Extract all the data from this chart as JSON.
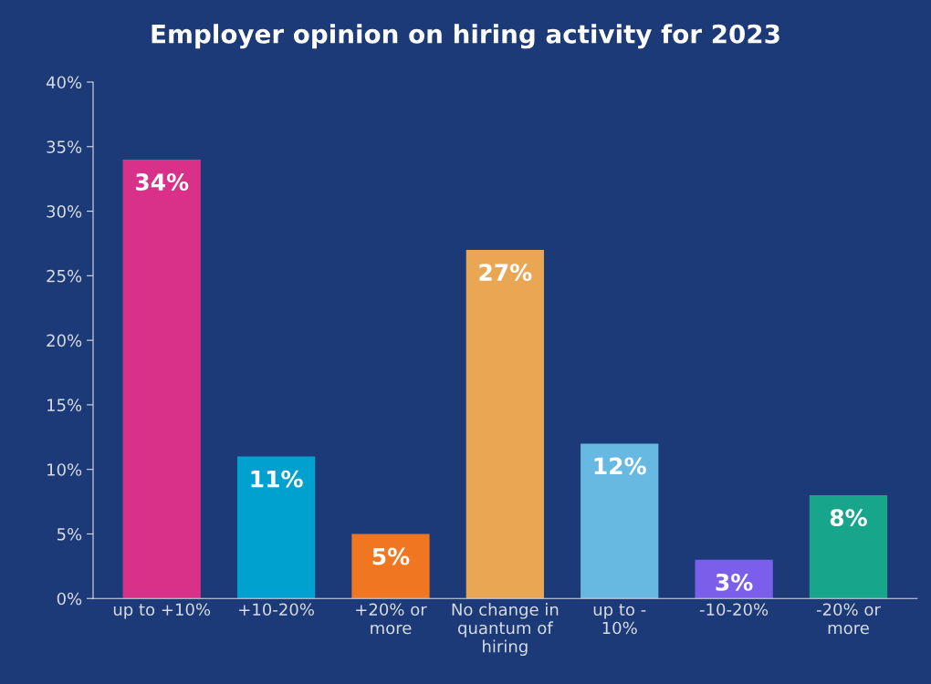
{
  "chart_data": {
    "type": "bar",
    "title": "Employer opinion on hiring activity for 2023",
    "categories": [
      "up to +10%",
      "+10-20%",
      "+20% or\nmore",
      "No change in\nquantum of\nhiring",
      "up to -\n10%",
      "-10-20%",
      "-20% or\nmore"
    ],
    "values": [
      34,
      11,
      5,
      27,
      12,
      3,
      8
    ],
    "colors": [
      "#d93189",
      "#00a0cf",
      "#f07621",
      "#e9a754",
      "#67b9e1",
      "#7b5fea",
      "#17a68b"
    ],
    "value_labels": [
      "34%",
      "11%",
      "5%",
      "27%",
      "12%",
      "3%",
      "8%"
    ],
    "ylim": [
      0,
      40
    ],
    "yticks": [
      {
        "value": 0,
        "label": "0%"
      },
      {
        "value": 5,
        "label": "5%"
      },
      {
        "value": 10,
        "label": "10%"
      },
      {
        "value": 15,
        "label": "15%"
      },
      {
        "value": 20,
        "label": "20%"
      },
      {
        "value": 25,
        "label": "25%"
      },
      {
        "value": 30,
        "label": "30%"
      },
      {
        "value": 35,
        "label": "35%"
      },
      {
        "value": 40,
        "label": "40%"
      }
    ],
    "grid": false,
    "legend": false
  }
}
